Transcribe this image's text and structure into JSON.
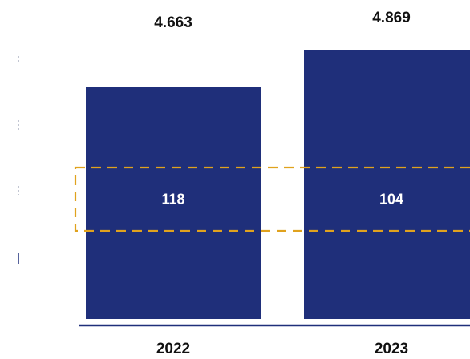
{
  "chart_data": {
    "type": "bar",
    "categories": [
      "2022",
      "2023"
    ],
    "totals": [
      4.663,
      4.869
    ],
    "total_labels": [
      "4.663",
      "4.869"
    ],
    "highlighted_segment_values": [
      118,
      104
    ],
    "highlighted_segment_labels": [
      "118",
      "104"
    ],
    "colors": {
      "bar": "#1f2f7a",
      "highlight_box": "#e0a21e",
      "axis": "#1f2f7a"
    },
    "highlight_box": true
  }
}
